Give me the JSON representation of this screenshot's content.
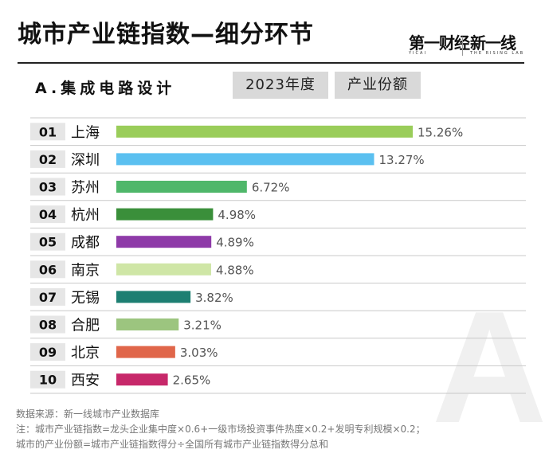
{
  "header": {
    "title": "城市产业链指数—细分环节",
    "brand_a": "第一财经",
    "brand_a_sub": "YICAI",
    "brand_b": "新一线",
    "brand_b_sub": "THE RISING LAB"
  },
  "subheader": {
    "section": "A.集成电路设计",
    "year_tag": "2023年度",
    "metric_tag": "产业份额",
    "watermark": "A"
  },
  "notes": {
    "source": "数据来源：新一线城市产业数据库",
    "formula": "注：城市产业链指数=龙头企业集中度×0.6+一级市场投资事件热度×0.2+发明专利规模×0.2；",
    "share_def": "城市的产业份额=城市产业链指数得分÷全国所有城市产业链指数得分总和"
  },
  "colors": {
    "rank_box": "#e6e6e6",
    "grid": "#c8c8c8",
    "value_text": "#555555"
  },
  "chart_data": {
    "type": "bar",
    "orientation": "horizontal",
    "ranks": [
      "01",
      "02",
      "03",
      "04",
      "05",
      "06",
      "07",
      "08",
      "09",
      "10"
    ],
    "categories": [
      "上海",
      "深圳",
      "苏州",
      "杭州",
      "成都",
      "南京",
      "无锡",
      "合肥",
      "北京",
      "西安"
    ],
    "values": [
      15.26,
      13.27,
      6.72,
      4.98,
      4.89,
      4.88,
      3.82,
      3.21,
      3.03,
      2.65
    ],
    "value_labels": [
      "15.26%",
      "13.27%",
      "6.72%",
      "4.98%",
      "4.89%",
      "4.88%",
      "3.82%",
      "3.21%",
      "3.03%",
      "2.65%"
    ],
    "bar_colors": [
      "#9acd5a",
      "#5bc0f0",
      "#4fb76a",
      "#3a8f3a",
      "#8e3aa8",
      "#cfe6a6",
      "#1d7f72",
      "#9cc57f",
      "#e0664a",
      "#c7286a"
    ],
    "unit": "%",
    "xlim": [
      0,
      15.26
    ],
    "grid": "horizontal-lines"
  }
}
